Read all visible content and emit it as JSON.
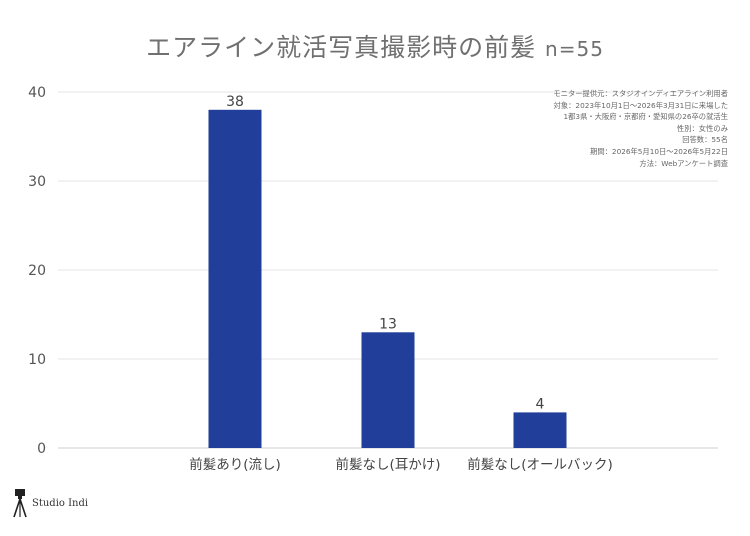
{
  "chart_data": {
    "type": "bar",
    "title": "エアライン就活写真撮影時の前髪",
    "subtitle": "n=55",
    "categories": [
      "前髪あり(流し)",
      "前髪なし(耳かけ)",
      "前髪なし(オールバック)"
    ],
    "values": [
      38,
      13,
      4
    ],
    "ylim": [
      0,
      40
    ],
    "yticks": [
      0,
      10,
      20,
      30,
      40
    ],
    "bar_color": "#213e9a",
    "grid": true,
    "data_labels": true
  },
  "notes": [
    "モニター提供元：スタジオインディエアライン利用者",
    "対象：2023年10月1日〜2026年3月31日に来場した",
    "1都3県・大阪府・京都府・愛知県の26卒の就活生",
    "性別：女性のみ",
    "回答数：55名",
    "期間：2026年5月10日〜2026年5月22日",
    "方法：Webアンケート調査"
  ],
  "logo": {
    "text": "Studio Indi",
    "icon": "camera-tripod-icon"
  }
}
